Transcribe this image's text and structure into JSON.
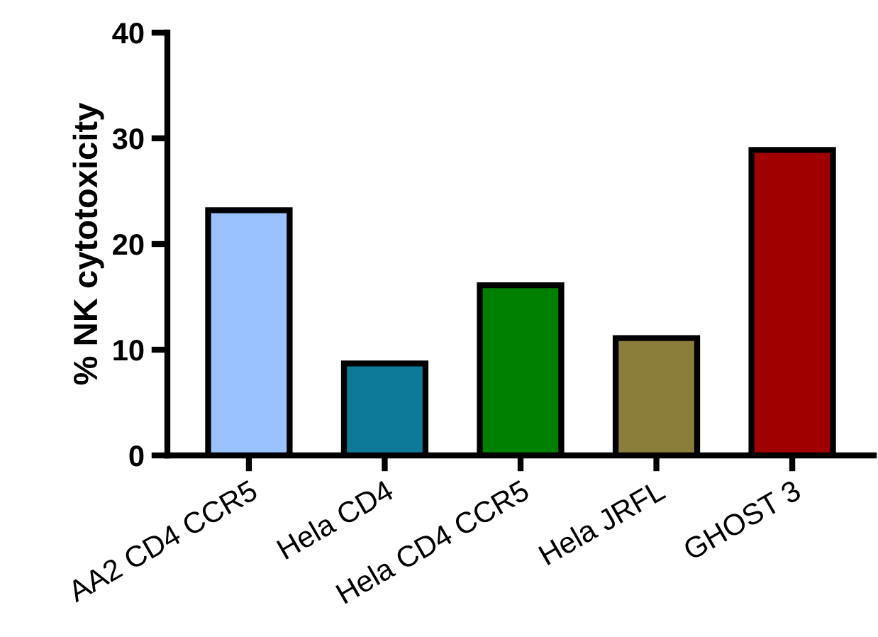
{
  "chart_data": {
    "type": "bar",
    "ylabel": "% NK cytotoxicity",
    "categories": [
      "AA2 CD4 CCR5",
      "Hela CD4",
      "Hela CD4 CCR5",
      "Hela JRFL",
      "GHOST 3"
    ],
    "values": [
      23.2,
      8.7,
      16.1,
      11.1,
      28.9
    ],
    "colors": [
      "#99c2ff",
      "#0d7a99",
      "#008000",
      "#8b7d3a",
      "#a00000"
    ],
    "ylim": [
      0,
      40
    ],
    "yticks": [
      0,
      10,
      20,
      30,
      40
    ],
    "grid": false,
    "legend": false
  }
}
